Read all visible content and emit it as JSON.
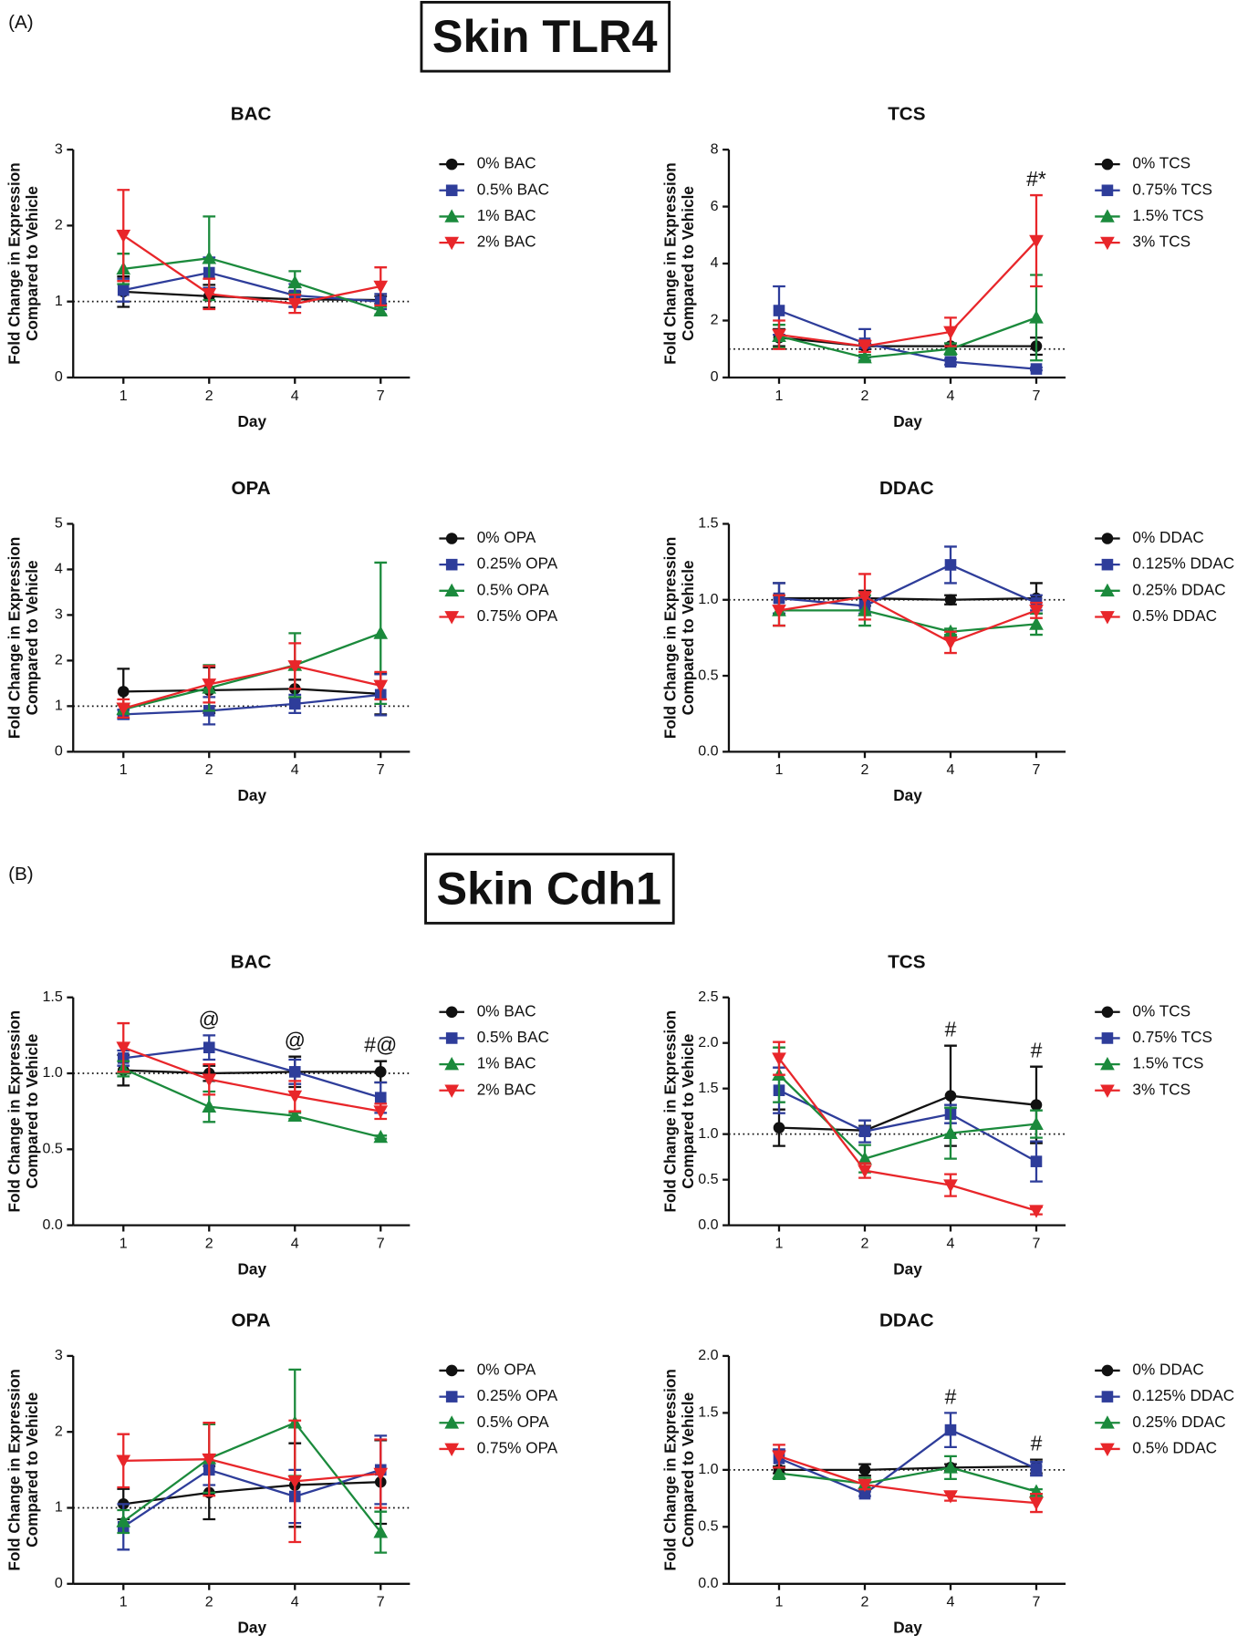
{
  "panels": [
    {
      "label": "(A)",
      "title": "Skin TLR4"
    },
    {
      "label": "(B)",
      "title": "Skin Cdh1"
    }
  ],
  "chart_data": [
    {
      "type": "line",
      "title": "BAC",
      "xlabel": "Day",
      "ylabel": [
        "Fold Change in Expression",
        "Compared to Vehicle"
      ],
      "categories": [
        "1",
        "2",
        "4",
        "7"
      ],
      "ylim": [
        0,
        3
      ],
      "yticks": [
        0,
        1,
        2,
        3
      ],
      "refline": 1,
      "legend": "right",
      "series": [
        {
          "name": "0% BAC",
          "color": "#111111",
          "marker": "circle",
          "values": [
            1.13,
            1.07,
            1.03,
            1.02
          ],
          "errors": [
            0.2,
            0.15,
            0.1,
            0.05
          ]
        },
        {
          "name": "0.5% BAC",
          "color": "#2e3d9a",
          "marker": "square",
          "values": [
            1.15,
            1.38,
            1.08,
            1.0
          ],
          "errors": [
            0.15,
            0.2,
            0.15,
            0.1
          ]
        },
        {
          "name": "1% BAC",
          "color": "#1b8a3c",
          "marker": "triangle-up",
          "values": [
            1.43,
            1.57,
            1.25,
            0.88
          ],
          "errors": [
            0.2,
            0.55,
            0.15,
            0.05
          ]
        },
        {
          "name": "2% BAC",
          "color": "#e8262a",
          "marker": "triangle-down",
          "values": [
            1.87,
            1.1,
            0.97,
            1.2
          ],
          "errors": [
            0.6,
            0.2,
            0.12,
            0.25
          ]
        }
      ]
    },
    {
      "type": "line",
      "title": "TCS",
      "xlabel": "Day",
      "ylabel": [
        "Fold Change in Expression",
        "Compared to Vehicle"
      ],
      "categories": [
        "1",
        "2",
        "4",
        "7"
      ],
      "ylim": [
        0,
        8
      ],
      "yticks": [
        0,
        2,
        4,
        6,
        8
      ],
      "refline": 1,
      "legend": "right",
      "annotations": [
        null,
        null,
        null,
        "#*"
      ],
      "series": [
        {
          "name": "0% TCS",
          "color": "#111111",
          "marker": "circle",
          "values": [
            1.4,
            1.1,
            1.1,
            1.1
          ],
          "errors": [
            0.3,
            0.1,
            0.1,
            0.3
          ]
        },
        {
          "name": "0.75% TCS",
          "color": "#2e3d9a",
          "marker": "square",
          "values": [
            2.35,
            1.2,
            0.55,
            0.3
          ],
          "errors": [
            0.85,
            0.5,
            0.1,
            0.05
          ]
        },
        {
          "name": "1.5% TCS",
          "color": "#1b8a3c",
          "marker": "triangle-up",
          "values": [
            1.45,
            0.7,
            1.0,
            2.1
          ],
          "errors": [
            0.4,
            0.1,
            0.2,
            1.5
          ]
        },
        {
          "name": "3% TCS",
          "color": "#e8262a",
          "marker": "triangle-down",
          "values": [
            1.5,
            1.1,
            1.6,
            4.8
          ],
          "errors": [
            0.5,
            0.2,
            0.5,
            1.6
          ]
        }
      ]
    },
    {
      "type": "line",
      "title": "OPA",
      "xlabel": "Day",
      "ylabel": [
        "Fold Change in Expression",
        "Compared to Vehicle"
      ],
      "categories": [
        "1",
        "2",
        "4",
        "7"
      ],
      "ylim": [
        0,
        5
      ],
      "yticks": [
        0,
        1,
        2,
        3,
        4,
        5
      ],
      "refline": 1,
      "legend": "right",
      "series": [
        {
          "name": "0% OPA",
          "color": "#111111",
          "marker": "circle",
          "values": [
            1.32,
            1.35,
            1.38,
            1.27
          ],
          "errors": [
            0.5,
            0.5,
            0.2,
            0.45
          ]
        },
        {
          "name": "0.25% OPA",
          "color": "#2e3d9a",
          "marker": "square",
          "values": [
            0.82,
            0.9,
            1.05,
            1.25
          ],
          "errors": [
            0.1,
            0.3,
            0.2,
            0.45
          ]
        },
        {
          "name": "0.5% OPA",
          "color": "#1b8a3c",
          "marker": "triangle-up",
          "values": [
            0.93,
            1.4,
            1.9,
            2.6
          ],
          "errors": [
            0.1,
            0.5,
            0.7,
            1.55
          ]
        },
        {
          "name": "0.75% OPA",
          "color": "#e8262a",
          "marker": "triangle-down",
          "values": [
            0.95,
            1.48,
            1.88,
            1.45
          ],
          "errors": [
            0.2,
            0.4,
            0.5,
            0.3
          ]
        }
      ]
    },
    {
      "type": "line",
      "title": "DDAC",
      "xlabel": "Day",
      "ylabel": [
        "Fold Change in Expression",
        "Compared to Vehicle"
      ],
      "categories": [
        "1",
        "2",
        "4",
        "7"
      ],
      "ylim": [
        0,
        1.5
      ],
      "yticks": [
        {
          "value": 0,
          "label": "0.0"
        },
        0.5,
        {
          "value": 1,
          "label": "1.0"
        },
        1.5
      ],
      "refline": 1,
      "legend": "right",
      "series": [
        {
          "name": "0% DDAC",
          "color": "#111111",
          "marker": "circle",
          "values": [
            1.01,
            1.01,
            1.0,
            1.01
          ],
          "errors": [
            0.1,
            0.05,
            0.03,
            0.1
          ]
        },
        {
          "name": "0.125% DDAC",
          "color": "#2e3d9a",
          "marker": "square",
          "values": [
            1.01,
            0.96,
            1.23,
            0.98
          ],
          "errors": [
            0.1,
            0.05,
            0.12,
            0.05
          ]
        },
        {
          "name": "0.25% DDAC",
          "color": "#1b8a3c",
          "marker": "triangle-up",
          "values": [
            0.93,
            0.93,
            0.79,
            0.84
          ],
          "errors": [
            0.1,
            0.1,
            0.02,
            0.07
          ]
        },
        {
          "name": "0.5% DDAC",
          "color": "#e8262a",
          "marker": "triangle-down",
          "values": [
            0.93,
            1.02,
            0.72,
            0.93
          ],
          "errors": [
            0.1,
            0.15,
            0.07,
            0.05
          ]
        }
      ]
    },
    {
      "type": "line",
      "title": "BAC",
      "xlabel": "Day",
      "ylabel": [
        "Fold Change in Expression",
        "Compared to Vehicle"
      ],
      "categories": [
        "1",
        "2",
        "4",
        "7"
      ],
      "ylim": [
        0,
        1.5
      ],
      "yticks": [
        {
          "value": 0,
          "label": "0.0"
        },
        0.5,
        {
          "value": 1,
          "label": "1.0"
        },
        1.5
      ],
      "refline": 1,
      "legend": "right",
      "annotations": [
        null,
        "@",
        "@",
        "#@"
      ],
      "series": [
        {
          "name": "0% BAC",
          "color": "#111111",
          "marker": "circle",
          "values": [
            1.02,
            1.0,
            1.01,
            1.01
          ],
          "errors": [
            0.1,
            0.05,
            0.1,
            0.07
          ]
        },
        {
          "name": "0.5% BAC",
          "color": "#2e3d9a",
          "marker": "square",
          "values": [
            1.1,
            1.17,
            1.01,
            0.84
          ],
          "errors": [
            0.05,
            0.08,
            0.08,
            0.1
          ]
        },
        {
          "name": "1% BAC",
          "color": "#1b8a3c",
          "marker": "triangle-up",
          "values": [
            1.03,
            0.78,
            0.72,
            0.58
          ],
          "errors": [
            0.05,
            0.1,
            0.02,
            0.01
          ]
        },
        {
          "name": "2% BAC",
          "color": "#e8262a",
          "marker": "triangle-down",
          "values": [
            1.17,
            0.96,
            0.85,
            0.75
          ],
          "errors": [
            0.16,
            0.1,
            0.1,
            0.05
          ]
        }
      ]
    },
    {
      "type": "line",
      "title": "TCS",
      "xlabel": "Day",
      "ylabel": [
        "Fold Change in Expression",
        "Compared to Vehicle"
      ],
      "categories": [
        "1",
        "2",
        "4",
        "7"
      ],
      "ylim": [
        0,
        2.5
      ],
      "yticks": [
        {
          "value": 0,
          "label": "0.0"
        },
        0.5,
        {
          "value": 1,
          "label": "1.0"
        },
        1.5,
        {
          "value": 2,
          "label": "2.0"
        },
        2.5
      ],
      "refline": 1,
      "legend": "right",
      "annotations": [
        null,
        null,
        "#",
        "#"
      ],
      "series": [
        {
          "name": "0% TCS",
          "color": "#111111",
          "marker": "circle",
          "values": [
            1.07,
            1.04,
            1.42,
            1.32
          ],
          "errors": [
            0.2,
            0.05,
            0.55,
            0.42
          ]
        },
        {
          "name": "0.75% TCS",
          "color": "#2e3d9a",
          "marker": "square",
          "values": [
            1.48,
            1.03,
            1.22,
            0.7
          ],
          "errors": [
            0.25,
            0.12,
            0.1,
            0.22
          ]
        },
        {
          "name": "1.5% TCS",
          "color": "#1b8a3c",
          "marker": "triangle-up",
          "values": [
            1.65,
            0.73,
            1.01,
            1.11
          ],
          "errors": [
            0.3,
            0.15,
            0.28,
            0.15
          ]
        },
        {
          "name": "3% TCS",
          "color": "#e8262a",
          "marker": "triangle-down",
          "values": [
            1.83,
            0.6,
            0.44,
            0.16
          ],
          "errors": [
            0.18,
            0.08,
            0.12,
            0.04
          ]
        }
      ]
    },
    {
      "type": "line",
      "title": "OPA",
      "xlabel": "Day",
      "ylabel": [
        "Fold Change in Expression",
        "Compared to Vehicle"
      ],
      "categories": [
        "1",
        "2",
        "4",
        "7"
      ],
      "ylim": [
        0,
        3
      ],
      "yticks": [
        0,
        1,
        2,
        3
      ],
      "refline": 1,
      "legend": "right",
      "series": [
        {
          "name": "0% OPA",
          "color": "#111111",
          "marker": "circle",
          "values": [
            1.05,
            1.2,
            1.3,
            1.34
          ],
          "errors": [
            0.2,
            0.35,
            0.55,
            0.55
          ]
        },
        {
          "name": "0.25% OPA",
          "color": "#2e3d9a",
          "marker": "square",
          "values": [
            0.75,
            1.5,
            1.15,
            1.5
          ],
          "errors": [
            0.3,
            0.2,
            0.35,
            0.45
          ]
        },
        {
          "name": "0.5% OPA",
          "color": "#1b8a3c",
          "marker": "triangle-up",
          "values": [
            0.82,
            1.65,
            2.12,
            0.68
          ],
          "errors": [
            0.15,
            0.45,
            0.7,
            0.27
          ]
        },
        {
          "name": "0.75% OPA",
          "color": "#e8262a",
          "marker": "triangle-down",
          "values": [
            1.62,
            1.64,
            1.35,
            1.45
          ],
          "errors": [
            0.35,
            0.48,
            0.8,
            0.45
          ]
        }
      ]
    },
    {
      "type": "line",
      "title": "DDAC",
      "xlabel": "Day",
      "ylabel": [
        "Fold Change in Expression",
        "Compared to Vehicle"
      ],
      "categories": [
        "1",
        "2",
        "4",
        "7"
      ],
      "ylim": [
        0,
        2
      ],
      "yticks": [
        {
          "value": 0,
          "label": "0.0"
        },
        0.5,
        {
          "value": 1,
          "label": "1.0"
        },
        1.5,
        {
          "value": 2,
          "label": "2.0"
        }
      ],
      "refline": 1,
      "legend": "right",
      "annotations": [
        null,
        null,
        "#",
        "#"
      ],
      "series": [
        {
          "name": "0% DDAC",
          "color": "#111111",
          "marker": "circle",
          "values": [
            1.0,
            1.0,
            1.02,
            1.03
          ],
          "errors": [
            0.03,
            0.05,
            0.03,
            0.06
          ]
        },
        {
          "name": "0.125% DDAC",
          "color": "#2e3d9a",
          "marker": "square",
          "values": [
            1.1,
            0.79,
            1.35,
            1.01
          ],
          "errors": [
            0.08,
            0.02,
            0.15,
            0.06
          ]
        },
        {
          "name": "0.25% DDAC",
          "color": "#1b8a3c",
          "marker": "triangle-up",
          "values": [
            0.97,
            0.88,
            1.02,
            0.81
          ],
          "errors": [
            0.05,
            0.05,
            0.1,
            0.02
          ]
        },
        {
          "name": "0.5% DDAC",
          "color": "#e8262a",
          "marker": "triangle-down",
          "values": [
            1.12,
            0.87,
            0.77,
            0.71
          ],
          "errors": [
            0.1,
            0.04,
            0.04,
            0.08
          ]
        }
      ]
    }
  ]
}
